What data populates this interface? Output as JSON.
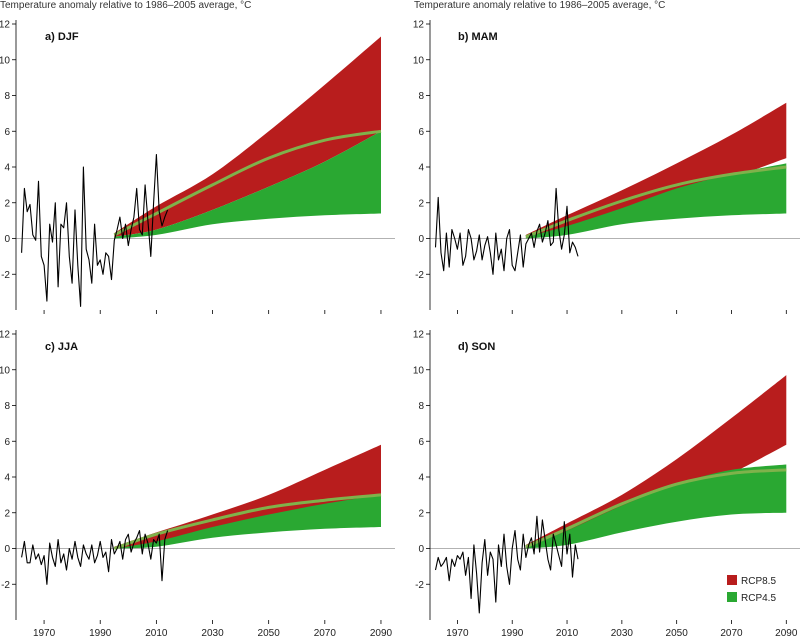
{
  "chart_data": [
    {
      "type": "area",
      "panel": "a) DJF",
      "ylabel": "Temperature anomaly relative to 1986–2005 average, °C",
      "ylim": [
        -4,
        12
      ],
      "xlim": [
        1960,
        2095
      ],
      "yticks": [
        -2,
        0,
        2,
        4,
        6,
        8,
        10,
        12
      ],
      "xticks": [
        1970,
        1990,
        2010,
        2030,
        2050,
        2070,
        2090
      ],
      "rcp85": {
        "x": [
          1995,
          2010,
          2030,
          2050,
          2070,
          2090
        ],
        "low": [
          0.1,
          0.5,
          1.6,
          2.9,
          4.3,
          6.0
        ],
        "high": [
          0.3,
          1.8,
          3.6,
          6.0,
          8.6,
          11.3
        ]
      },
      "rcp45": {
        "x": [
          1995,
          2010,
          2030,
          2050,
          2070,
          2090
        ],
        "low": [
          0.0,
          0.2,
          0.8,
          1.1,
          1.3,
          1.4
        ],
        "high": [
          0.1,
          0.5,
          1.6,
          2.9,
          4.3,
          6.0
        ]
      },
      "median": {
        "x": [
          1995,
          2010,
          2030,
          2050,
          2070,
          2090
        ],
        "y": [
          0.2,
          1.4,
          3.0,
          4.5,
          5.5,
          6.0
        ]
      },
      "observed": {
        "x": [
          1962,
          1963,
          1964,
          1965,
          1966,
          1967,
          1968,
          1969,
          1970,
          1971,
          1972,
          1973,
          1974,
          1975,
          1976,
          1977,
          1978,
          1979,
          1980,
          1981,
          1982,
          1983,
          1984,
          1985,
          1986,
          1987,
          1988,
          1989,
          1990,
          1991,
          1992,
          1993,
          1994,
          1995,
          1996,
          1997,
          1998,
          1999,
          2000,
          2001,
          2002,
          2003,
          2004,
          2005,
          2006,
          2007,
          2008,
          2009,
          2010,
          2011,
          2012,
          2013,
          2014
        ],
        "y": [
          -0.8,
          2.8,
          1.5,
          1.9,
          0.2,
          -0.1,
          3.2,
          -1.0,
          -1.5,
          -3.5,
          0.8,
          -0.2,
          2.0,
          -2.7,
          0.8,
          0.6,
          2.0,
          -1.0,
          -2.5,
          1.6,
          -1.5,
          -3.8,
          4.0,
          -0.6,
          -1.2,
          -2.5,
          0.8,
          -1.5,
          -1.2,
          -2.0,
          -0.8,
          -1.0,
          -2.3,
          -0.1,
          0.5,
          1.2,
          0.0,
          0.8,
          -0.4,
          0.5,
          1.2,
          2.8,
          0.5,
          0.2,
          3.0,
          1.0,
          -1.0,
          2.0,
          4.7,
          1.5,
          0.7,
          1.2,
          1.6
        ]
      }
    },
    {
      "type": "area",
      "panel": "b) MAM",
      "ylabel": "Temperature anomaly relative to 1986–2005 average, °C",
      "ylim": [
        -4,
        12
      ],
      "xlim": [
        1960,
        2095
      ],
      "yticks": [
        -2,
        0,
        2,
        4,
        6,
        8,
        10,
        12
      ],
      "xticks": [
        1970,
        1990,
        2010,
        2030,
        2050,
        2070,
        2090
      ],
      "rcp85": {
        "x": [
          1995,
          2010,
          2030,
          2050,
          2070,
          2090
        ],
        "low": [
          0.0,
          0.4,
          1.5,
          2.5,
          3.4,
          4.5
        ],
        "high": [
          0.2,
          1.3,
          2.7,
          4.2,
          5.8,
          7.6
        ]
      },
      "rcp45": {
        "x": [
          1995,
          2010,
          2030,
          2050,
          2070,
          2090
        ],
        "low": [
          0.0,
          0.2,
          0.8,
          1.1,
          1.3,
          1.4
        ],
        "high": [
          0.1,
          0.7,
          1.7,
          2.8,
          3.6,
          4.2
        ]
      },
      "median": {
        "x": [
          1995,
          2010,
          2030,
          2050,
          2070,
          2090
        ],
        "y": [
          0.1,
          1.0,
          2.1,
          3.0,
          3.6,
          4.0
        ]
      },
      "observed": {
        "x": [
          1962,
          1963,
          1964,
          1965,
          1966,
          1967,
          1968,
          1969,
          1970,
          1971,
          1972,
          1973,
          1974,
          1975,
          1976,
          1977,
          1978,
          1979,
          1980,
          1981,
          1982,
          1983,
          1984,
          1985,
          1986,
          1987,
          1988,
          1989,
          1990,
          1991,
          1992,
          1993,
          1994,
          1995,
          1996,
          1997,
          1998,
          1999,
          2000,
          2001,
          2002,
          2003,
          2004,
          2005,
          2006,
          2007,
          2008,
          2009,
          2010,
          2011,
          2012,
          2013,
          2014
        ],
        "y": [
          -0.5,
          2.3,
          -0.8,
          -1.8,
          0.3,
          -1.6,
          0.5,
          0.0,
          -0.6,
          0.3,
          -1.5,
          -1.0,
          0.5,
          0.0,
          -1.2,
          -0.7,
          0.2,
          -1.2,
          -0.4,
          0.1,
          -0.8,
          -2.0,
          0.3,
          -1.2,
          -0.6,
          -1.8,
          0.0,
          0.5,
          -1.5,
          -1.8,
          -0.8,
          0.2,
          -1.6,
          -0.3,
          0.0,
          0.3,
          -0.5,
          0.4,
          0.8,
          -0.2,
          0.3,
          1.0,
          -0.4,
          -0.2,
          2.8,
          0.5,
          -0.6,
          0.2,
          1.8,
          -0.8,
          -0.2,
          -0.5,
          -1.0
        ]
      }
    },
    {
      "type": "area",
      "panel": "c) JJA",
      "ylabel": "",
      "ylim": [
        -4,
        12
      ],
      "xlim": [
        1960,
        2095
      ],
      "yticks": [
        -2,
        0,
        2,
        4,
        6,
        8,
        10,
        12
      ],
      "xticks": [
        1970,
        1990,
        2010,
        2030,
        2050,
        2070,
        2090
      ],
      "rcp85": {
        "x": [
          1995,
          2010,
          2030,
          2050,
          2070,
          2090
        ],
        "low": [
          0.0,
          0.3,
          1.0,
          1.7,
          2.3,
          3.0
        ],
        "high": [
          0.1,
          0.9,
          1.9,
          3.0,
          4.4,
          5.8
        ]
      },
      "rcp45": {
        "x": [
          1995,
          2010,
          2030,
          2050,
          2070,
          2090
        ],
        "low": [
          0.0,
          0.1,
          0.6,
          0.9,
          1.1,
          1.2
        ],
        "high": [
          0.0,
          0.4,
          1.2,
          1.9,
          2.5,
          3.0
        ]
      },
      "median": {
        "x": [
          1995,
          2010,
          2030,
          2050,
          2070,
          2090
        ],
        "y": [
          0.0,
          0.8,
          1.6,
          2.3,
          2.7,
          3.0
        ]
      },
      "observed": {
        "x": [
          1962,
          1963,
          1964,
          1965,
          1966,
          1967,
          1968,
          1969,
          1970,
          1971,
          1972,
          1973,
          1974,
          1975,
          1976,
          1977,
          1978,
          1979,
          1980,
          1981,
          1982,
          1983,
          1984,
          1985,
          1986,
          1987,
          1988,
          1989,
          1990,
          1991,
          1992,
          1993,
          1994,
          1995,
          1996,
          1997,
          1998,
          1999,
          2000,
          2001,
          2002,
          2003,
          2004,
          2005,
          2006,
          2007,
          2008,
          2009,
          2010,
          2011,
          2012,
          2013,
          2014
        ],
        "y": [
          -0.5,
          0.4,
          -0.8,
          -0.8,
          0.2,
          -0.6,
          -0.3,
          -0.9,
          -0.4,
          -2.0,
          0.3,
          -0.5,
          -1.0,
          0.5,
          -0.8,
          -0.3,
          -1.2,
          0.0,
          -0.6,
          0.4,
          -0.5,
          -1.0,
          0.2,
          -0.3,
          -0.6,
          0.2,
          -0.8,
          -0.4,
          0.4,
          -0.5,
          -0.2,
          -1.3,
          0.5,
          -0.3,
          0.0,
          0.4,
          -0.6,
          0.5,
          0.8,
          -0.2,
          0.3,
          0.6,
          1.0,
          -0.3,
          0.8,
          0.3,
          -0.6,
          0.5,
          0.3,
          0.8,
          -1.8,
          0.5,
          1.0
        ]
      }
    },
    {
      "type": "area",
      "panel": "d) SON",
      "ylabel": "",
      "ylim": [
        -4,
        12
      ],
      "xlim": [
        1960,
        2095
      ],
      "yticks": [
        -2,
        0,
        2,
        4,
        6,
        8,
        10,
        12
      ],
      "xticks": [
        1970,
        1990,
        2010,
        2030,
        2050,
        2070,
        2090
      ],
      "rcp85": {
        "x": [
          1995,
          2010,
          2030,
          2050,
          2070,
          2090
        ],
        "low": [
          0.0,
          0.5,
          1.5,
          2.8,
          4.2,
          5.8
        ],
        "high": [
          0.2,
          1.4,
          3.0,
          5.0,
          7.3,
          9.7
        ]
      },
      "rcp45": {
        "x": [
          1995,
          2010,
          2030,
          2050,
          2070,
          2090
        ],
        "low": [
          0.0,
          0.2,
          0.9,
          1.5,
          1.9,
          2.0
        ],
        "high": [
          0.1,
          1.0,
          2.4,
          3.6,
          4.4,
          4.7
        ]
      },
      "median": {
        "x": [
          1995,
          2010,
          2030,
          2050,
          2070,
          2090
        ],
        "y": [
          0.1,
          1.1,
          2.5,
          3.6,
          4.2,
          4.4
        ]
      },
      "observed": {
        "x": [
          1962,
          1963,
          1964,
          1965,
          1966,
          1967,
          1968,
          1969,
          1970,
          1971,
          1972,
          1973,
          1974,
          1975,
          1976,
          1977,
          1978,
          1979,
          1980,
          1981,
          1982,
          1983,
          1984,
          1985,
          1986,
          1987,
          1988,
          1989,
          1990,
          1991,
          1992,
          1993,
          1994,
          1995,
          1996,
          1997,
          1998,
          1999,
          2000,
          2001,
          2002,
          2003,
          2004,
          2005,
          2006,
          2007,
          2008,
          2009,
          2010,
          2011,
          2012,
          2013,
          2014
        ],
        "y": [
          -1.2,
          -0.5,
          -1.0,
          -0.8,
          -0.5,
          -1.8,
          -0.6,
          -1.0,
          -0.4,
          -0.6,
          -0.2,
          -1.5,
          -0.5,
          -2.8,
          0.2,
          -1.4,
          -3.6,
          -0.8,
          0.5,
          -1.5,
          -0.2,
          -0.6,
          -3.0,
          0.2,
          -1.0,
          0.8,
          -1.0,
          -2.0,
          0.0,
          1.0,
          -0.6,
          -1.2,
          0.8,
          -0.5,
          0.2,
          0.6,
          -0.3,
          1.8,
          -0.2,
          1.6,
          0.5,
          -0.6,
          -1.2,
          0.8,
          0.2,
          -0.4,
          -1.0,
          1.5,
          -0.3,
          0.8,
          -1.6,
          0.2,
          -0.6
        ]
      }
    }
  ],
  "legend": {
    "placement": "bottom-right",
    "entries": [
      {
        "label": "RCP8.5",
        "color": "#b81d1d"
      },
      {
        "label": "RCP4.5",
        "color": "#2aa832"
      }
    ]
  },
  "colors": {
    "rcp85": "#b81d1d",
    "rcp45": "#2aa832",
    "median": "#7fb24b",
    "observed": "#000000",
    "zero_line": "#999999",
    "axis": "#000000"
  }
}
